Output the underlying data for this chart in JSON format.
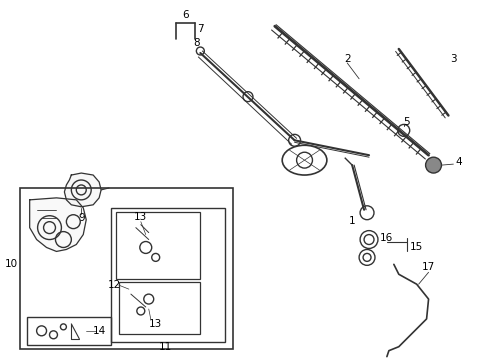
{
  "bg_color": "#ffffff",
  "line_color": "#333333",
  "figsize": [
    4.89,
    3.6
  ],
  "dpi": 100,
  "label_fs": 7.5
}
